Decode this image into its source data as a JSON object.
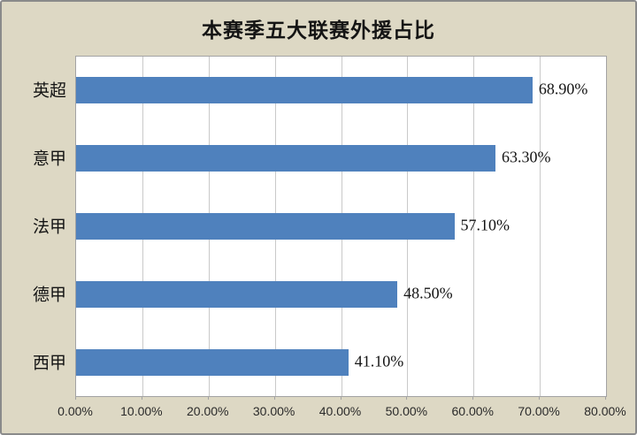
{
  "chart_data": {
    "type": "bar",
    "orientation": "horizontal",
    "title": "本赛季五大联赛外援占比",
    "categories": [
      "英超",
      "意甲",
      "法甲",
      "德甲",
      "西甲"
    ],
    "values": [
      68.9,
      63.3,
      57.1,
      48.5,
      41.1
    ],
    "value_labels": [
      "68.90%",
      "63.30%",
      "57.10%",
      "48.50%",
      "41.10%"
    ],
    "x_tick_labels": [
      "0.00%",
      "10.00%",
      "20.00%",
      "30.00%",
      "40.00%",
      "50.00%",
      "60.00%",
      "70.00%",
      "80.00%"
    ],
    "xlim": [
      0,
      80
    ],
    "grid": true,
    "legend": "none",
    "colors": {
      "bar": "#4f81bd",
      "frame_background": "#ddd8c4",
      "frame_border": "#8a8a8a",
      "plot_background": "#ffffff",
      "plot_border": "#a3a3a3",
      "gridline": "#c9c9c9",
      "text": "#141414"
    }
  }
}
